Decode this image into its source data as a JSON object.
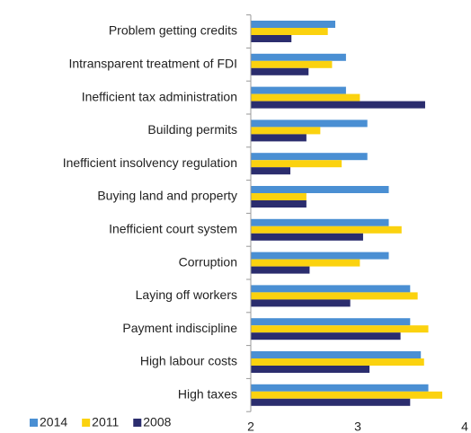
{
  "chart_data": {
    "type": "hbar",
    "categories": [
      "Problem getting credits",
      "Intransparent treatment of FDI",
      "Inefficient tax administration",
      "Building permits",
      "Inefficient insolvency regulation",
      "Buying land and property",
      "Inefficient court system",
      "Corruption",
      "Laying off workers",
      "Payment indiscipline",
      "High labour costs",
      "High taxes"
    ],
    "series": [
      {
        "name": "2014",
        "color": "#4a8fd3",
        "values": [
          2.79,
          2.89,
          2.89,
          3.09,
          3.09,
          3.29,
          3.29,
          3.29,
          3.49,
          3.49,
          3.59,
          3.66
        ]
      },
      {
        "name": "2011",
        "color": "#fbd20f",
        "values": [
          2.72,
          2.76,
          3.02,
          2.65,
          2.85,
          2.52,
          3.41,
          3.02,
          3.56,
          3.66,
          3.62,
          3.79
        ]
      },
      {
        "name": "2008",
        "color": "#2b2d6e",
        "values": [
          2.38,
          2.54,
          3.63,
          2.52,
          2.37,
          2.52,
          3.05,
          2.55,
          2.93,
          3.4,
          3.11,
          3.49
        ]
      }
    ],
    "xlim": [
      2,
      4
    ],
    "xticks": [
      2,
      3,
      4
    ],
    "legend": "bottom-left"
  }
}
